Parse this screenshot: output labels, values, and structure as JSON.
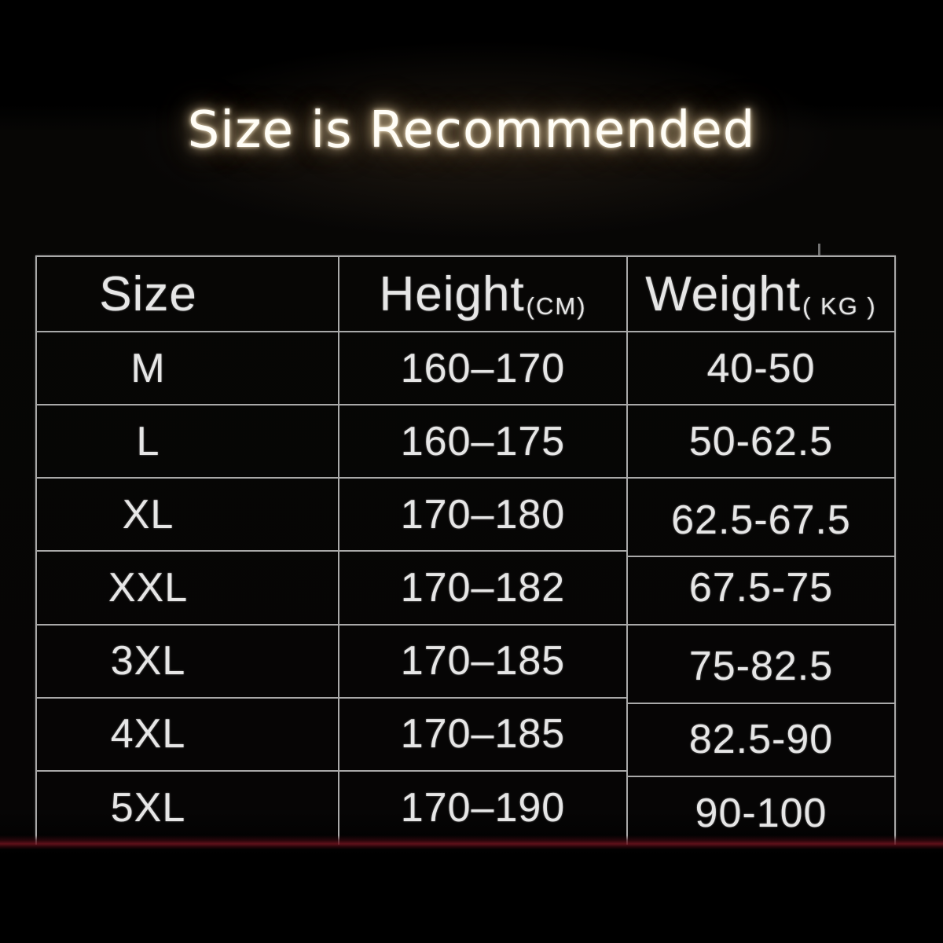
{
  "title": "Size is Recommended",
  "chart_data": {
    "type": "table",
    "title": "Size is Recommended",
    "columns": [
      {
        "label": "Size",
        "unit": ""
      },
      {
        "label": "Height",
        "unit": "(CM)"
      },
      {
        "label": "Weight",
        "unit": "( KG )"
      }
    ],
    "rows": [
      [
        "M",
        "160–170",
        "40-50"
      ],
      [
        "L",
        "160–175",
        "50-62.5"
      ],
      [
        "XL",
        "170–180",
        "62.5-67.5"
      ],
      [
        "XXL",
        "170–182",
        "67.5-75"
      ],
      [
        "3XL",
        "170–185",
        "75-82.5"
      ],
      [
        "4XL",
        "170–185",
        "82.5-90"
      ],
      [
        "5XL",
        "170–190",
        "90-100"
      ]
    ]
  },
  "colors": {
    "background": "#000000",
    "table_border": "#a9a9a9",
    "cell_text": "#e6e6e6",
    "title_glow": "#f2dfbe",
    "bottom_strip_red": "#6e121e"
  }
}
